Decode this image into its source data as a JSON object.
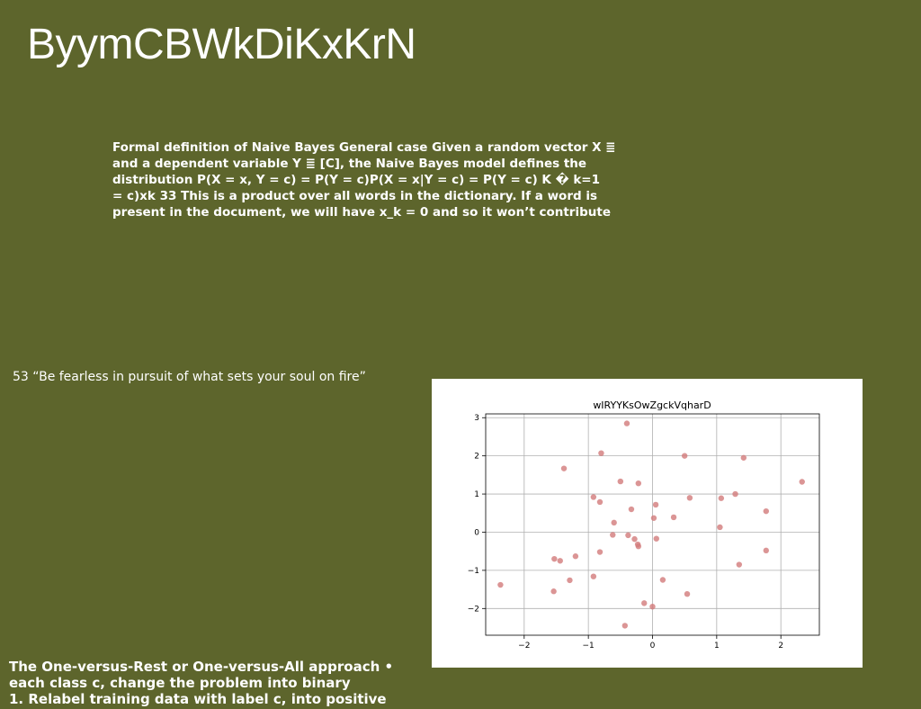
{
  "slide": {
    "title": "ByymCBWkDiKxKrN",
    "definition_lines": [
      "Formal definition of Naive Bayes General case Given a random vector X ≣",
      "and a dependent variable Y ≣ [C], the Naive Bayes model defines the",
      "distribution P(X = x, Y = c) = P(Y = c)P(X = x|Y = c) = P(Y = c) K � k=1",
      "= c)xk 33 This is a product over all words in the dictionary. If a word is",
      "present in the document, we will have x_k = 0 and so it won’t contribute"
    ],
    "quote": "53 “Be fearless in pursuit of what sets your soul on fire”",
    "ovr_lines": [
      "The One-versus-Rest or One-versus-All approach •",
      "each class c, change the problem into binary",
      "1. Relabel training data with label c, into positive"
    ]
  },
  "chart_data": {
    "type": "scatter",
    "title": "wIRYYKsOwZgckVqharD",
    "xlim": [
      -2.6,
      2.6
    ],
    "ylim": [
      -2.7,
      3.1
    ],
    "xticks": [
      -2,
      -1,
      0,
      1,
      2
    ],
    "yticks": [
      -2,
      -1,
      0,
      1,
      2,
      3
    ],
    "xtick_labels": [
      "−2",
      "−1",
      "0",
      "1",
      "2"
    ],
    "ytick_labels": [
      "−2",
      "−1",
      "0",
      "1",
      "2",
      "3"
    ],
    "grid": true,
    "point_color": "#d27b7b",
    "points": [
      [
        -0.4,
        2.85
      ],
      [
        -0.8,
        2.07
      ],
      [
        0.5,
        2.0
      ],
      [
        1.42,
        1.95
      ],
      [
        -1.38,
        1.67
      ],
      [
        -0.5,
        1.33
      ],
      [
        -0.22,
        1.28
      ],
      [
        2.33,
        1.32
      ],
      [
        -0.92,
        0.92
      ],
      [
        -0.82,
        0.79
      ],
      [
        0.05,
        0.72
      ],
      [
        0.58,
        0.9
      ],
      [
        1.07,
        0.89
      ],
      [
        1.29,
        1.0
      ],
      [
        -0.33,
        0.6
      ],
      [
        1.77,
        0.55
      ],
      [
        0.02,
        0.37
      ],
      [
        0.33,
        0.39
      ],
      [
        -0.6,
        0.25
      ],
      [
        1.05,
        0.13
      ],
      [
        -0.62,
        -0.07
      ],
      [
        -0.38,
        -0.08
      ],
      [
        -0.28,
        -0.18
      ],
      [
        0.06,
        -0.17
      ],
      [
        -0.23,
        -0.32
      ],
      [
        -0.22,
        -0.37
      ],
      [
        -0.82,
        -0.52
      ],
      [
        -1.2,
        -0.63
      ],
      [
        -1.53,
        -0.7
      ],
      [
        -1.44,
        -0.75
      ],
      [
        1.77,
        -0.48
      ],
      [
        1.35,
        -0.85
      ],
      [
        -0.92,
        -1.16
      ],
      [
        -1.29,
        -1.26
      ],
      [
        0.16,
        -1.25
      ],
      [
        -2.37,
        -1.38
      ],
      [
        -1.54,
        -1.55
      ],
      [
        0.54,
        -1.62
      ],
      [
        -0.13,
        -1.86
      ],
      [
        0.0,
        -1.95
      ],
      [
        -0.43,
        -2.45
      ]
    ]
  }
}
